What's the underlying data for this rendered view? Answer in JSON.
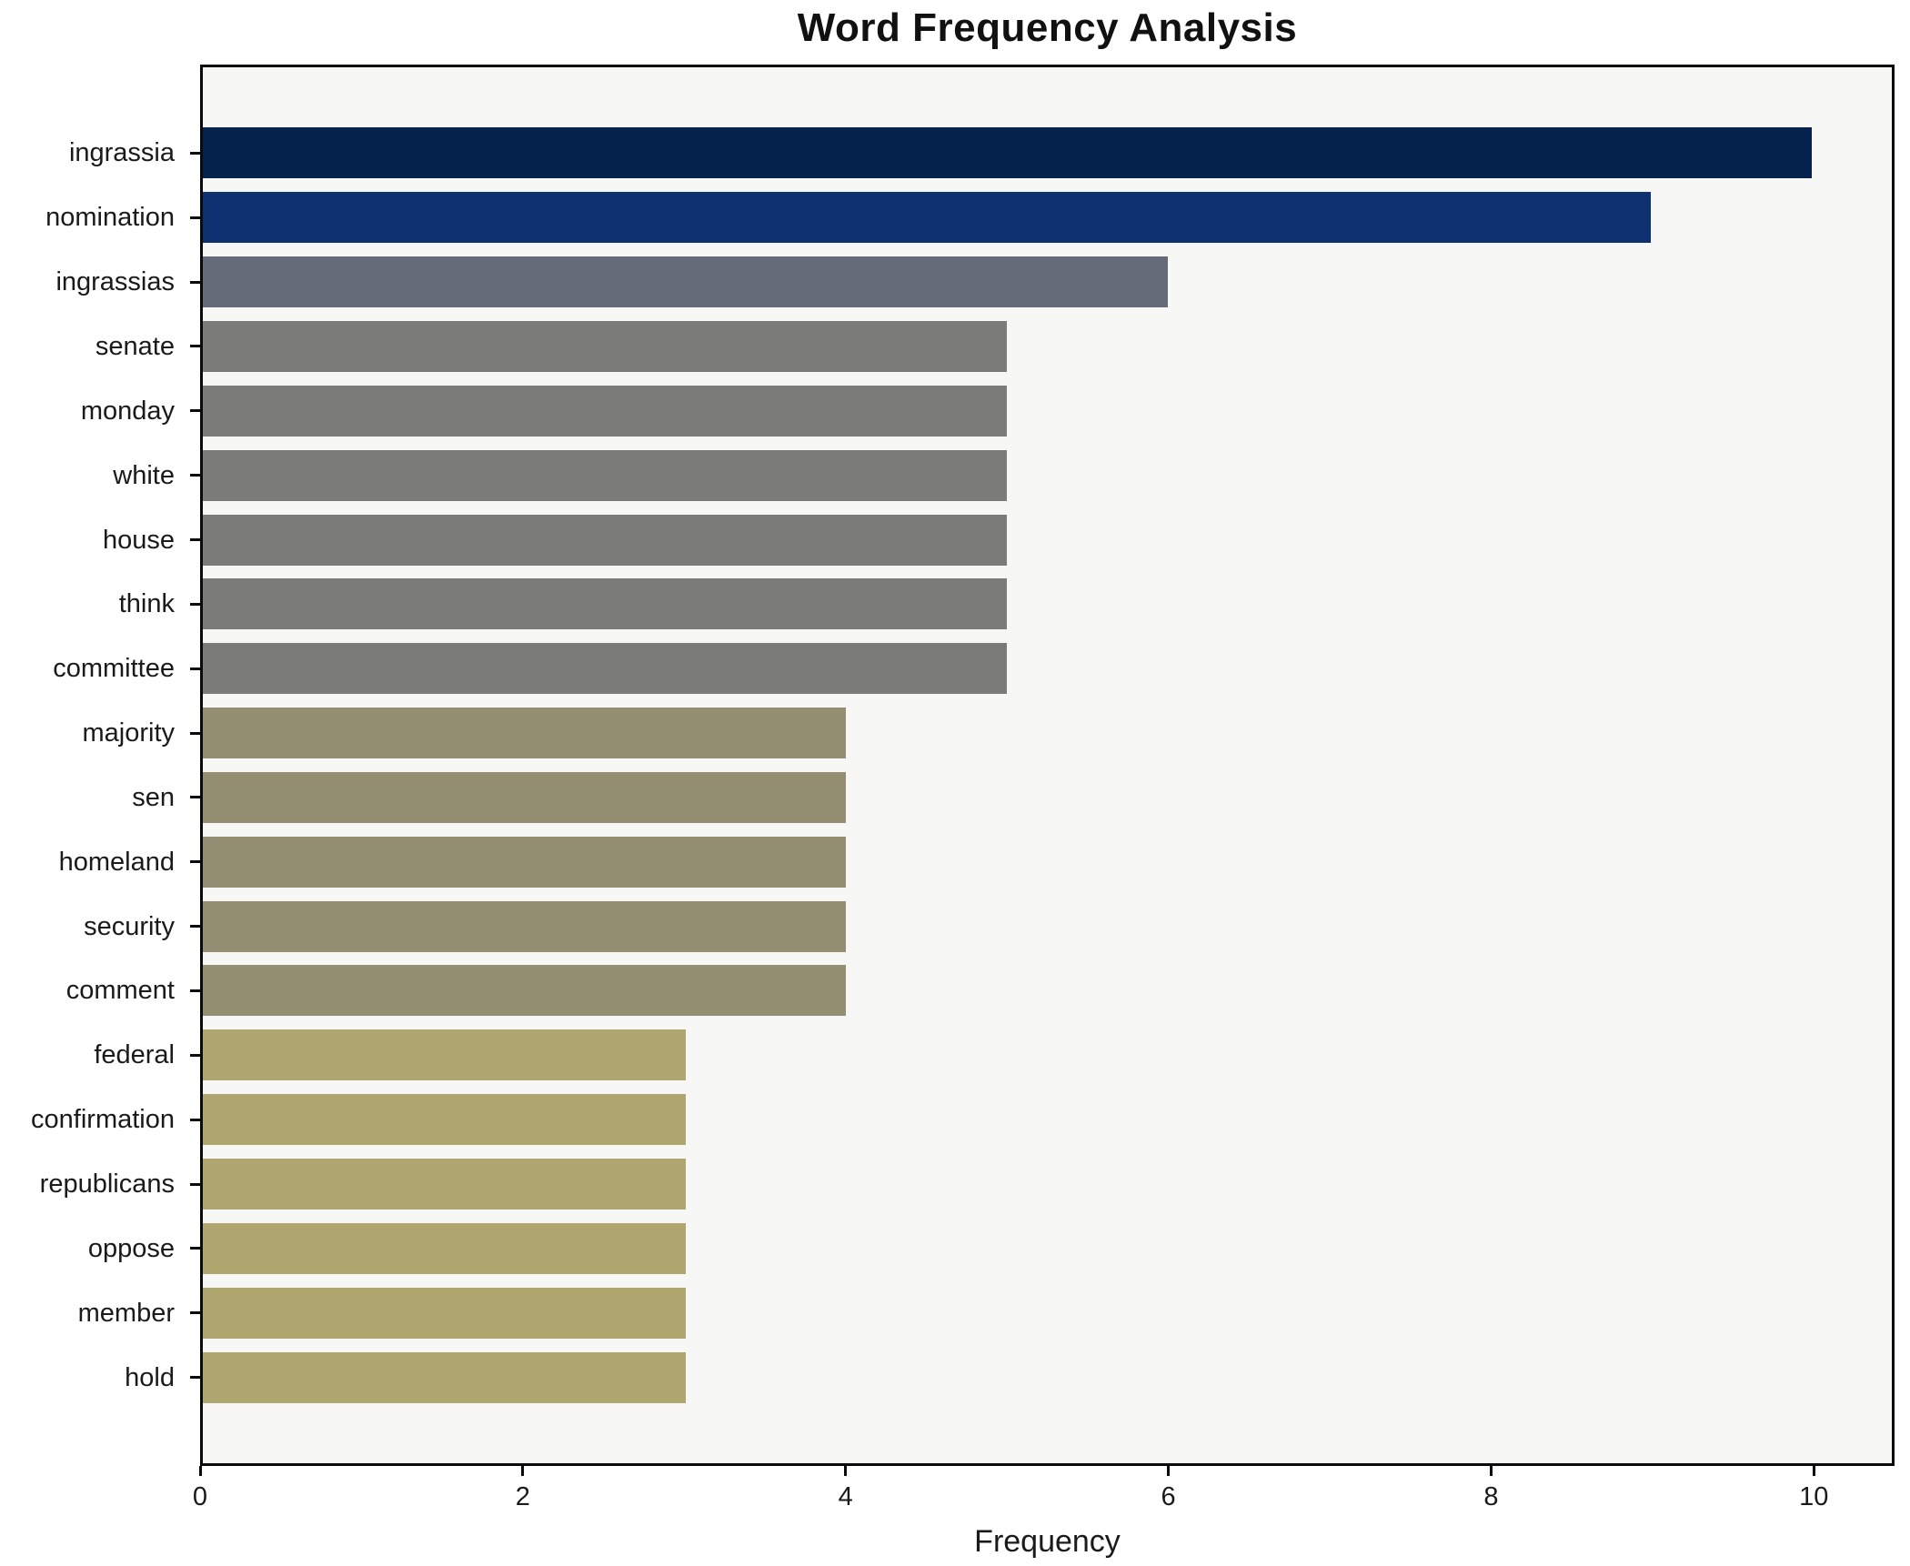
{
  "title": "Word Frequency Analysis",
  "chart_data": {
    "type": "bar",
    "orientation": "horizontal",
    "title": "Word Frequency Analysis",
    "xlabel": "Frequency",
    "ylabel": "",
    "categories": [
      "ingrassia",
      "nomination",
      "ingrassias",
      "senate",
      "monday",
      "white",
      "house",
      "think",
      "committee",
      "majority",
      "sen",
      "homeland",
      "security",
      "comment",
      "federal",
      "confirmation",
      "republicans",
      "oppose",
      "member",
      "hold"
    ],
    "values": [
      10,
      9,
      6,
      5,
      5,
      5,
      5,
      5,
      5,
      4,
      4,
      4,
      4,
      4,
      3,
      3,
      3,
      3,
      3,
      3
    ],
    "bar_colors": [
      "#04224b",
      "#0e3271",
      "#656b77",
      "#7b7b78",
      "#7b7b78",
      "#7b7b78",
      "#7b7b78",
      "#7b7b78",
      "#7b7b78",
      "#948f73",
      "#948f73",
      "#948f73",
      "#948f73",
      "#948f73",
      "#b0a66f",
      "#b0a66f",
      "#b0a66f",
      "#b0a66f",
      "#b0a66f",
      "#b0a66f"
    ],
    "xlim": [
      0,
      10.5
    ],
    "xticks": [
      0,
      2,
      4,
      6,
      8,
      10
    ],
    "grid": false,
    "legend_position": "none",
    "plot_background": "#f7f7f5",
    "figure_background": "#ffffff",
    "spine_color": "#0a0a0a",
    "text_color": "#1a1a1a"
  }
}
